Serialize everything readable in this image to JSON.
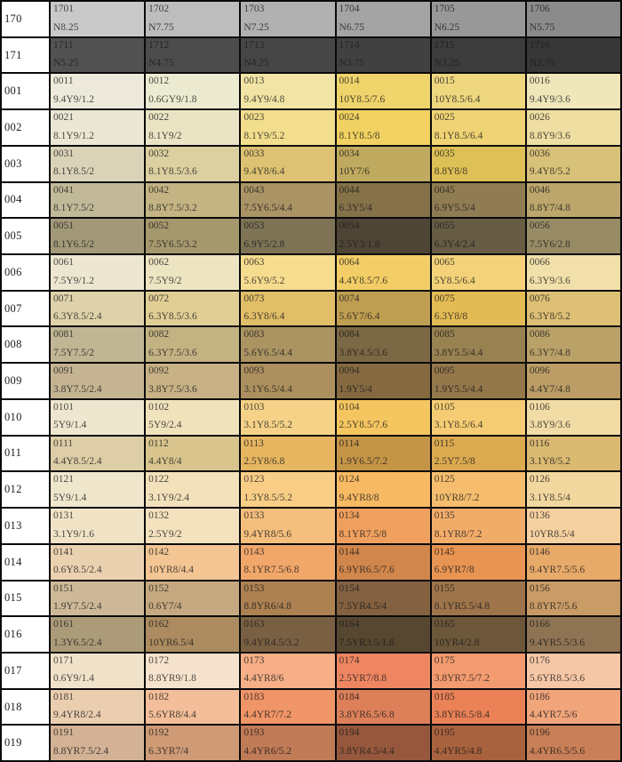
{
  "table": {
    "rows": [
      {
        "label": "170",
        "cells": [
          {
            "code": "1701",
            "munsell": "N8.25",
            "bg": "#c9c9c9"
          },
          {
            "code": "1702",
            "munsell": "N7.75",
            "bg": "#bdbdbd"
          },
          {
            "code": "1703",
            "munsell": "N7.25",
            "bg": "#b1b1b1"
          },
          {
            "code": "1704",
            "munsell": "N6.75",
            "bg": "#a4a4a4"
          },
          {
            "code": "1705",
            "munsell": "N6.25",
            "bg": "#989898"
          },
          {
            "code": "1706",
            "munsell": "N5.75",
            "bg": "#8b8b8b"
          }
        ]
      },
      {
        "label": "171",
        "cells": [
          {
            "code": "1711",
            "munsell": "N5.25",
            "bg": "#525252"
          },
          {
            "code": "1712",
            "munsell": "N4.75",
            "bg": "#4c4c4c"
          },
          {
            "code": "1713",
            "munsell": "N4.25",
            "bg": "#464646"
          },
          {
            "code": "1714",
            "munsell": "N3.75",
            "bg": "#414141"
          },
          {
            "code": "1715",
            "munsell": "N3.25",
            "bg": "#3c3c3c"
          },
          {
            "code": "1716",
            "munsell": "N2.75",
            "bg": "#373737"
          }
        ]
      },
      {
        "label": "001",
        "cells": [
          {
            "code": "0011",
            "munsell": "9.4Y9/1.2",
            "bg": "#edeadb"
          },
          {
            "code": "0012",
            "munsell": "0.6GY9/1.8",
            "bg": "#ecebd1"
          },
          {
            "code": "0013",
            "munsell": "9.4Y9/4.8",
            "bg": "#f2e4a4"
          },
          {
            "code": "0014",
            "munsell": "10Y8.5/7.6",
            "bg": "#efd46b"
          },
          {
            "code": "0015",
            "munsell": "10Y8.5/6.4",
            "bg": "#eed77f"
          },
          {
            "code": "0016",
            "munsell": "9.4Y9/3.6",
            "bg": "#efe6b9"
          }
        ]
      },
      {
        "label": "002",
        "cells": [
          {
            "code": "0021",
            "munsell": "8.1Y9/1.2",
            "bg": "#ebe7d4"
          },
          {
            "code": "0022",
            "munsell": "8.1Y9/2",
            "bg": "#ebe4c4"
          },
          {
            "code": "0023",
            "munsell": "8.1Y9/5.2",
            "bg": "#f3de8e"
          },
          {
            "code": "0024",
            "munsell": "8.1Y8.5/8",
            "bg": "#f1d161"
          },
          {
            "code": "0025",
            "munsell": "8.1Y8.5/6.4",
            "bg": "#f0d374"
          },
          {
            "code": "0026",
            "munsell": "8.8Y9/3.6",
            "bg": "#efdea2"
          }
        ]
      },
      {
        "label": "003",
        "cells": [
          {
            "code": "0031",
            "munsell": "8.1Y8.5/2",
            "bg": "#dad3b8"
          },
          {
            "code": "0032",
            "munsell": "8.1Y8.5/3.6",
            "bg": "#dccfa0"
          },
          {
            "code": "0033",
            "munsell": "9.4Y8/6.4",
            "bg": "#dcc272"
          },
          {
            "code": "0034",
            "munsell": "10Y7/6",
            "bg": "#c0aa5f"
          },
          {
            "code": "0035",
            "munsell": "8.8Y8/8",
            "bg": "#ddc056"
          },
          {
            "code": "0036",
            "munsell": "9.4Y8/5.2",
            "bg": "#d8c179"
          }
        ]
      },
      {
        "label": "004",
        "cells": [
          {
            "code": "0041",
            "munsell": "8.1Y7.5/2",
            "bg": "#c2b998"
          },
          {
            "code": "0042",
            "munsell": "8.8Y7.5/3.2",
            "bg": "#c4b484"
          },
          {
            "code": "0043",
            "munsell": "7.5Y6.5/4.4",
            "bg": "#aa9365"
          },
          {
            "code": "0044",
            "munsell": "6.3Y5/4",
            "bg": "#857249"
          },
          {
            "code": "0045",
            "munsell": "6.9Y5.5/4",
            "bg": "#8f7c52"
          },
          {
            "code": "0046",
            "munsell": "8.8Y7/4.8",
            "bg": "#bca66c"
          }
        ]
      },
      {
        "label": "005",
        "cells": [
          {
            "code": "0051",
            "munsell": "8.1Y6.5/2",
            "bg": "#a39979"
          },
          {
            "code": "0052",
            "munsell": "7.5Y6.5/3.2",
            "bg": "#a6986d"
          },
          {
            "code": "0053",
            "munsell": "6.9Y5/2.8",
            "bg": "#7e7355"
          },
          {
            "code": "0054",
            "munsell": "2.5Y3/1.8",
            "bg": "#4f4536"
          },
          {
            "code": "0055",
            "munsell": "6.3Y4/2.4",
            "bg": "#675c44"
          },
          {
            "code": "0056",
            "munsell": "7.5Y6/2.8",
            "bg": "#988c66"
          }
        ]
      },
      {
        "label": "006",
        "cells": [
          {
            "code": "0061",
            "munsell": "7.5Y9/1.2",
            "bg": "#ede7d1"
          },
          {
            "code": "0062",
            "munsell": "7.5Y9/2",
            "bg": "#ede4c2"
          },
          {
            "code": "0063",
            "munsell": "5.6Y9/5.2",
            "bg": "#f6dc8e"
          },
          {
            "code": "0064",
            "munsell": "4.4Y8.5/7.6",
            "bg": "#f3ce66"
          },
          {
            "code": "0065",
            "munsell": "5Y8.5/6.4",
            "bg": "#f3d279"
          },
          {
            "code": "0066",
            "munsell": "6.3Y9/3.6",
            "bg": "#f1e0aa"
          }
        ]
      },
      {
        "label": "007",
        "cells": [
          {
            "code": "0071",
            "munsell": "6.3Y8.5/2.4",
            "bg": "#dfd2aa"
          },
          {
            "code": "0072",
            "munsell": "6.3Y8.5/3.6",
            "bg": "#e0ce95"
          },
          {
            "code": "0073",
            "munsell": "6.3Y8/6.4",
            "bg": "#e1be68"
          },
          {
            "code": "0074",
            "munsell": "5.6Y7/6.4",
            "bg": "#be9e51"
          },
          {
            "code": "0075",
            "munsell": "6.3Y8/8",
            "bg": "#e3bb54"
          },
          {
            "code": "0076",
            "munsell": "6.3Y8/5.2",
            "bg": "#ddbf75"
          }
        ]
      },
      {
        "label": "008",
        "cells": [
          {
            "code": "0081",
            "munsell": "7.5Y7.5/2",
            "bg": "#c0b694"
          },
          {
            "code": "0082",
            "munsell": "6.3Y7.5/3.6",
            "bg": "#c3b282"
          },
          {
            "code": "0083",
            "munsell": "5.6Y6.5/4.4",
            "bg": "#ab9462"
          },
          {
            "code": "0084",
            "munsell": "3.8Y4.5/3.6",
            "bg": "#7b6844"
          },
          {
            "code": "0085",
            "munsell": "3.8Y5.5/4.4",
            "bg": "#988251"
          },
          {
            "code": "0086",
            "munsell": "6.3Y7/4.8",
            "bg": "#baa168"
          }
        ]
      },
      {
        "label": "009",
        "cells": [
          {
            "code": "0091",
            "munsell": "3.8Y7.5/2.4",
            "bg": "#c4b492"
          },
          {
            "code": "0092",
            "munsell": "3.8Y7.5/3.6",
            "bg": "#c7b185"
          },
          {
            "code": "0093",
            "munsell": "3.1Y6.5/4.4",
            "bg": "#ad905f"
          },
          {
            "code": "0094",
            "munsell": "1.9Y5/4",
            "bg": "#856941"
          },
          {
            "code": "0095",
            "munsell": "1.9Y5.5/4.4",
            "bg": "#94774b"
          },
          {
            "code": "0096",
            "munsell": "4.4Y7/4.8",
            "bg": "#bb9d65"
          }
        ]
      },
      {
        "label": "010",
        "cells": [
          {
            "code": "0101",
            "munsell": "5Y9/1.4",
            "bg": "#eee6ce"
          },
          {
            "code": "0102",
            "munsell": "5Y9/2.4",
            "bg": "#f0e3bc"
          },
          {
            "code": "0103",
            "munsell": "3.1Y8.5/5.2",
            "bg": "#f6d288"
          },
          {
            "code": "0104",
            "munsell": "2.5Y8.5/7.6",
            "bg": "#f5c660"
          },
          {
            "code": "0105",
            "munsell": "3.1Y8.5/6.4",
            "bg": "#f5cc73"
          },
          {
            "code": "0106",
            "munsell": "3.8Y9/3.6",
            "bg": "#f2dca6"
          }
        ]
      },
      {
        "label": "011",
        "cells": [
          {
            "code": "0111",
            "munsell": "4.4Y8.5/2.4",
            "bg": "#ddcea7"
          },
          {
            "code": "0112",
            "munsell": "4.4Y8/4",
            "bg": "#d9c48d"
          },
          {
            "code": "0113",
            "munsell": "2.5Y8/6.8",
            "bg": "#e6b660"
          },
          {
            "code": "0114",
            "munsell": "1.9Y6.5/7.2",
            "bg": "#c49547"
          },
          {
            "code": "0115",
            "munsell": "2.5Y7.5/8",
            "bg": "#dba950"
          },
          {
            "code": "0116",
            "munsell": "3.1Y8/5.2",
            "bg": "#dab971"
          }
        ]
      },
      {
        "label": "012",
        "cells": [
          {
            "code": "0121",
            "munsell": "5Y9/1.4",
            "bg": "#efe6cc"
          },
          {
            "code": "0122",
            "munsell": "3.1Y9/2.4",
            "bg": "#f2e1ba"
          },
          {
            "code": "0123",
            "munsell": "1.3Y8.5/5.2",
            "bg": "#f8ce87"
          },
          {
            "code": "0124",
            "munsell": "9.4YR8/8",
            "bg": "#f7ba63"
          },
          {
            "code": "0125",
            "munsell": "10YR8/7.2",
            "bg": "#f5bd6d"
          },
          {
            "code": "0126",
            "munsell": "3.1Y8.5/4",
            "bg": "#f2d79e"
          }
        ]
      },
      {
        "label": "013",
        "cells": [
          {
            "code": "0131",
            "munsell": "3.1Y9/1.6",
            "bg": "#f0e3c6"
          },
          {
            "code": "0132",
            "munsell": "2.5Y9/2",
            "bg": "#f4e1be"
          },
          {
            "code": "0133",
            "munsell": "9.4YR8/5.6",
            "bg": "#f4be7d"
          },
          {
            "code": "0134",
            "munsell": "8.1YR7.5/8",
            "bg": "#f0a05e"
          },
          {
            "code": "0135",
            "munsell": "8.1YR8/7.2",
            "bg": "#f2ac6a"
          },
          {
            "code": "0136",
            "munsell": "10YR8.5/4",
            "bg": "#f5d0a0"
          }
        ]
      },
      {
        "label": "014",
        "cells": [
          {
            "code": "0141",
            "munsell": "0.6Y8.5/2.4",
            "bg": "#ead1b0"
          },
          {
            "code": "0142",
            "munsell": "10YR8/4.4",
            "bg": "#f2c593"
          },
          {
            "code": "0143",
            "munsell": "8.1YR7.5/6.8",
            "bg": "#f1a76a"
          },
          {
            "code": "0144",
            "munsell": "6.9YR6.5/7.6",
            "bg": "#d1864b"
          },
          {
            "code": "0145",
            "munsell": "6.9YR7/8",
            "bg": "#e89452"
          },
          {
            "code": "0146",
            "munsell": "9.4YR7.5/5.6",
            "bg": "#e7aa69"
          }
        ]
      },
      {
        "label": "015",
        "cells": [
          {
            "code": "0151",
            "munsell": "1.9Y7.5/2.4",
            "bg": "#cdb997"
          },
          {
            "code": "0152",
            "munsell": "0.6Y7/4",
            "bg": "#c6a980"
          },
          {
            "code": "0153",
            "munsell": "8.8YR6/4.8",
            "bg": "#ad8152"
          },
          {
            "code": "0154",
            "munsell": "7.5YR4.5/4",
            "bg": "#836141"
          },
          {
            "code": "0155",
            "munsell": "8.1YR5.5/4.8",
            "bg": "#9e744b"
          },
          {
            "code": "0156",
            "munsell": "8.8YR7/5.6",
            "bg": "#c99b66"
          }
        ]
      },
      {
        "label": "016",
        "cells": [
          {
            "code": "0161",
            "munsell": "1.3Y6.5/2.4",
            "bg": "#ab9b79"
          },
          {
            "code": "0162",
            "munsell": "10YR6.5/4",
            "bg": "#ab8b5f"
          },
          {
            "code": "0163",
            "munsell": "9.4YR4.5/3.2",
            "bg": "#7a6043"
          },
          {
            "code": "0164",
            "munsell": "7.5YR3.5/1.8",
            "bg": "#574731"
          },
          {
            "code": "0165",
            "munsell": "10YR4/2.8",
            "bg": "#6c573a"
          },
          {
            "code": "0166",
            "munsell": "9.4YR5.5/3.6",
            "bg": "#8f7453"
          }
        ]
      },
      {
        "label": "017",
        "cells": [
          {
            "code": "0171",
            "munsell": "0.6Y9/1.4",
            "bg": "#f0e3ca"
          },
          {
            "code": "0172",
            "munsell": "8.8YR9/1.8",
            "bg": "#f6e3cd"
          },
          {
            "code": "0173",
            "munsell": "4.4YR8/6",
            "bg": "#f6af87"
          },
          {
            "code": "0174",
            "munsell": "2.5YR7/8.8",
            "bg": "#ef8662"
          },
          {
            "code": "0175",
            "munsell": "3.8YR7.5/7.2",
            "bg": "#f39b70"
          },
          {
            "code": "0176",
            "munsell": "5.6YR8.5/3.6",
            "bg": "#f6c7a6"
          }
        ]
      },
      {
        "label": "018",
        "cells": [
          {
            "code": "0181",
            "munsell": "9.4YR8/2.4",
            "bg": "#ebceb0"
          },
          {
            "code": "0182",
            "munsell": "5.6YR8/4.4",
            "bg": "#f3be99"
          },
          {
            "code": "0183",
            "munsell": "4.4YR7/7.2",
            "bg": "#ef9567"
          },
          {
            "code": "0184",
            "munsell": "3.8YR6.5/6.8",
            "bg": "#dd8059"
          },
          {
            "code": "0185",
            "munsell": "3.8YR6.5/8.4",
            "bg": "#ea8157"
          },
          {
            "code": "0186",
            "munsell": "4.4YR7.5/6",
            "bg": "#f0a57b"
          }
        ]
      },
      {
        "label": "019",
        "cells": [
          {
            "code": "0191",
            "munsell": "8.8YR7.5/2.4",
            "bg": "#d3b295"
          },
          {
            "code": "0192",
            "munsell": "6.3YR7/4",
            "bg": "#cf9b76"
          },
          {
            "code": "0193",
            "munsell": "4.4YR6/5.2",
            "bg": "#c07b57"
          },
          {
            "code": "0194",
            "munsell": "3.8YR4.5/4.4",
            "bg": "#95583c"
          },
          {
            "code": "0195",
            "munsell": "4.4YR5/4.8",
            "bg": "#a8623e"
          },
          {
            "code": "0196",
            "munsell": "4.4YR6.5/5.6",
            "bg": "#c97f57"
          }
        ]
      }
    ]
  },
  "colors": {
    "grid_border": "#0a0a0a",
    "label_background": "#ffffff",
    "label_text": "#1c1c1c",
    "swatch_text": "#2d2d2d"
  }
}
